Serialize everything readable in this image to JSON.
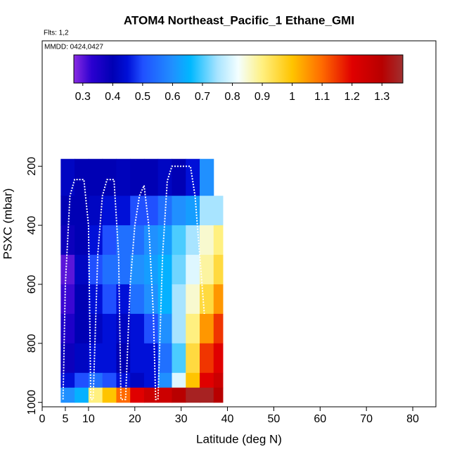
{
  "chart_data": {
    "type": "heatmap",
    "title": "ATOM4 Northeast_Pacific_1 Ethane_GMI",
    "flights_label": "Flts: 1,2",
    "dates_label": "MMDD: 0424,0427",
    "xlabel": "Latitude (deg N)",
    "ylabel": "PSXC (mbar)",
    "xlim": [
      0,
      85
    ],
    "xticks": [
      0,
      5,
      10,
      20,
      30,
      40,
      50,
      60,
      70,
      80
    ],
    "ylim": [
      1015,
      -225
    ],
    "yticks": [
      200,
      400,
      600,
      800,
      1000
    ],
    "x_edges": [
      4,
      7,
      10,
      13,
      16,
      19,
      22,
      25,
      28,
      31,
      34,
      37,
      39
    ],
    "y_edges": [
      175,
      300,
      400,
      500,
      600,
      700,
      800,
      900,
      950,
      1000
    ],
    "values": [
      [
        0.42,
        0.4,
        0.4,
        0.4,
        0.41,
        0.4,
        0.4,
        0.42,
        0.4,
        0.45,
        0.6,
        null
      ],
      [
        0.4,
        0.4,
        0.42,
        0.45,
        0.45,
        0.5,
        0.5,
        0.55,
        0.6,
        0.62,
        0.75,
        0.75
      ],
      [
        0.38,
        0.4,
        0.45,
        0.5,
        0.55,
        0.55,
        0.6,
        0.62,
        0.7,
        0.75,
        0.85,
        0.9
      ],
      [
        0.3,
        0.42,
        0.5,
        0.55,
        0.55,
        0.6,
        0.62,
        0.65,
        0.72,
        0.8,
        0.88,
        0.95
      ],
      [
        0.32,
        0.4,
        0.45,
        0.5,
        0.45,
        0.55,
        0.6,
        0.65,
        0.75,
        0.85,
        0.95,
        1.05
      ],
      [
        0.35,
        0.4,
        0.42,
        0.45,
        0.42,
        0.45,
        0.5,
        0.6,
        0.75,
        0.9,
        1.05,
        1.15
      ],
      [
        0.38,
        0.42,
        0.45,
        0.45,
        0.4,
        0.45,
        0.45,
        0.55,
        0.7,
        0.95,
        1.15,
        1.2
      ],
      [
        0.45,
        0.5,
        0.55,
        0.5,
        0.45,
        0.42,
        0.45,
        0.6,
        0.8,
        1.0,
        1.2,
        1.25
      ],
      [
        0.6,
        0.65,
        0.9,
        1.0,
        1.1,
        1.2,
        1.25,
        1.25,
        1.3,
        1.35,
        1.35,
        1.3
      ]
    ],
    "track": {
      "color": "#ffffff",
      "x": [
        4.5,
        5,
        6,
        7,
        9,
        10,
        10.5,
        11,
        12,
        13,
        14,
        15.5,
        16.5,
        17,
        18,
        19,
        20,
        21,
        22,
        23,
        24,
        24.5,
        25,
        26,
        27,
        28,
        32,
        33,
        34,
        35
      ],
      "y": [
        990,
        600,
        300,
        245,
        245,
        400,
        990,
        990,
        500,
        300,
        245,
        245,
        500,
        990,
        990,
        600,
        400,
        300,
        265,
        400,
        700,
        990,
        990,
        500,
        250,
        200,
        200,
        300,
        500,
        700
      ]
    },
    "clim": [
      0.27,
      1.37
    ],
    "cticks": [
      0.3,
      0.4,
      0.5,
      0.6,
      0.7,
      0.8,
      0.9,
      1.0,
      1.1,
      1.2,
      1.3
    ],
    "colormap": [
      [
        0.27,
        "#8a2be2"
      ],
      [
        0.33,
        "#2a00d0"
      ],
      [
        0.4,
        "#0000b4"
      ],
      [
        0.45,
        "#0010d8"
      ],
      [
        0.5,
        "#2050ff"
      ],
      [
        0.6,
        "#2090ff"
      ],
      [
        0.66,
        "#00b8ff"
      ],
      [
        0.75,
        "#a8e4ff"
      ],
      [
        0.82,
        "#f4ffff"
      ],
      [
        0.9,
        "#fff080"
      ],
      [
        1.0,
        "#ffc400"
      ],
      [
        1.1,
        "#ff6a00"
      ],
      [
        1.2,
        "#e00000"
      ],
      [
        1.3,
        "#b80000"
      ],
      [
        1.37,
        "#a03030"
      ]
    ]
  }
}
